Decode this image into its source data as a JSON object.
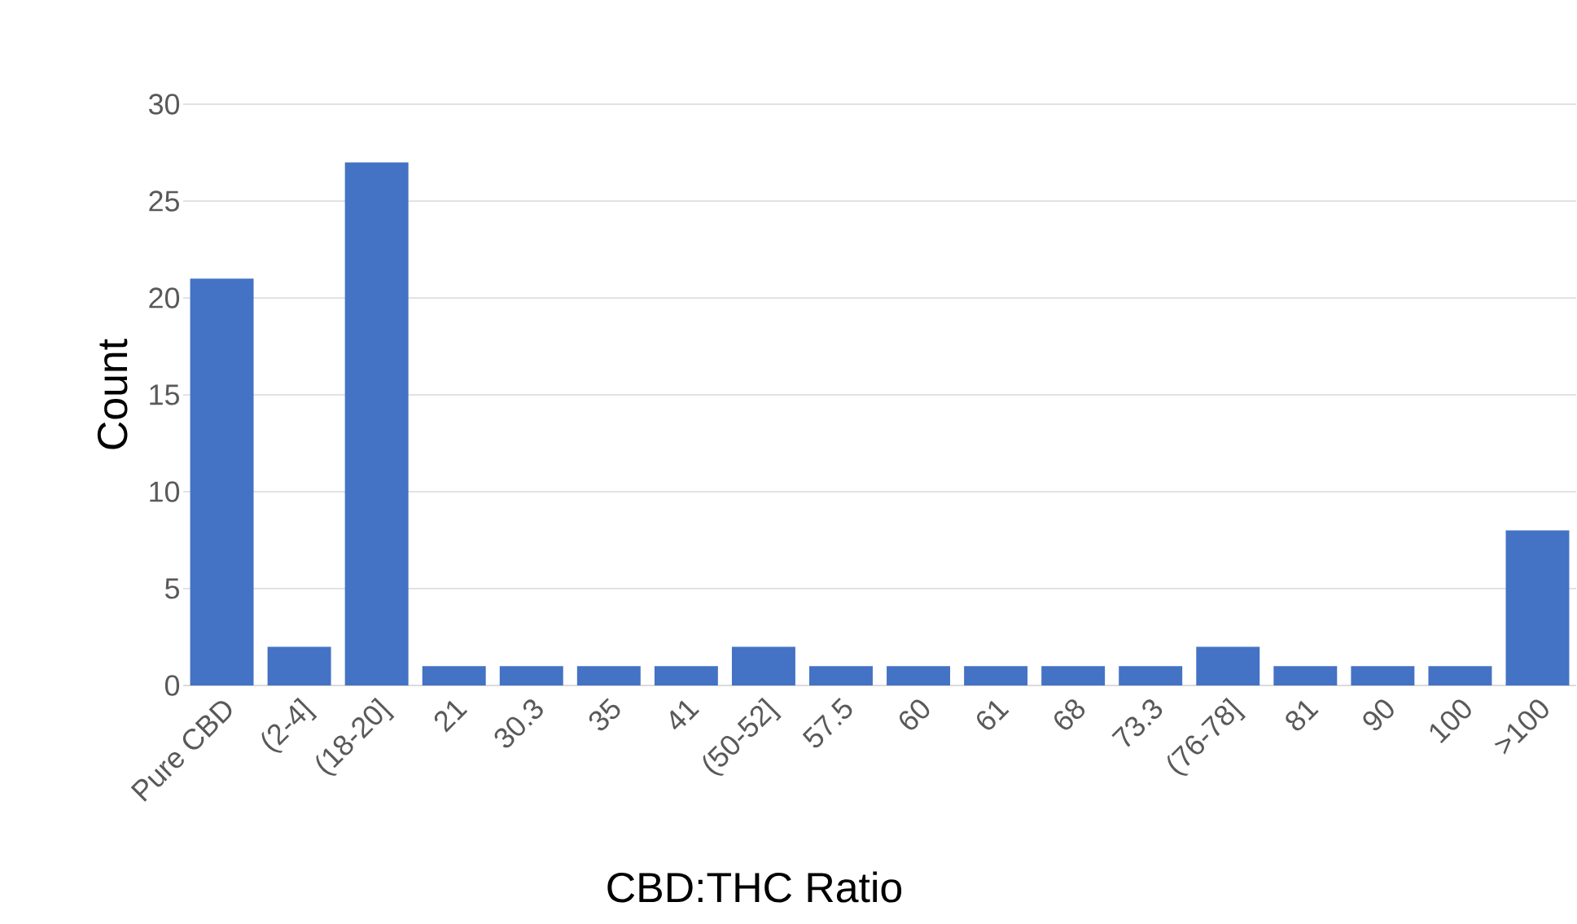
{
  "chart_data": {
    "type": "bar",
    "xlabel": "CBD:THC Ratio",
    "ylabel": "Count",
    "categories": [
      "Pure CBD",
      "(2-4]",
      "(18-20]",
      "21",
      "30.3",
      "35",
      "41",
      "(50-52]",
      "57.5",
      "60",
      "61",
      "68",
      "73.3",
      "(76-78]",
      "81",
      "90",
      "100",
      ">100"
    ],
    "values": [
      21,
      2,
      27,
      1,
      1,
      1,
      1,
      2,
      1,
      1,
      1,
      1,
      1,
      2,
      1,
      1,
      1,
      8
    ],
    "color": "#4472c4",
    "ylim": [
      0,
      30
    ],
    "yticks": [
      0,
      5,
      10,
      15,
      20,
      25,
      30
    ],
    "grid": "y"
  }
}
